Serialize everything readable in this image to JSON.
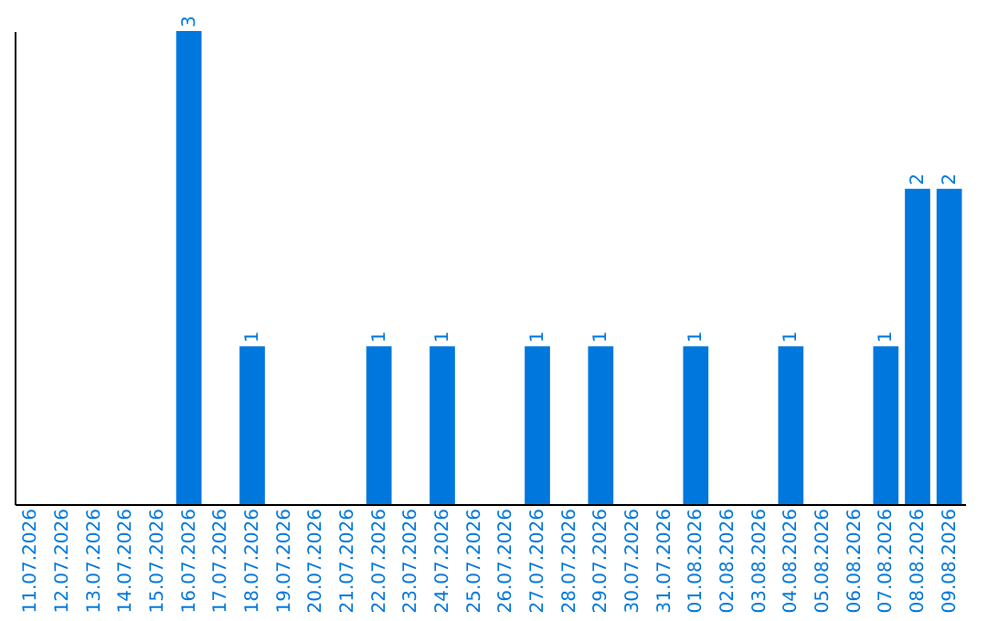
{
  "chart_data": {
    "type": "bar",
    "categories": [
      "11.07.2026",
      "12.07.2026",
      "13.07.2026",
      "14.07.2026",
      "15.07.2026",
      "16.07.2026",
      "17.07.2026",
      "18.07.2026",
      "19.07.2026",
      "20.07.2026",
      "21.07.2026",
      "22.07.2026",
      "23.07.2026",
      "24.07.2026",
      "25.07.2026",
      "26.07.2026",
      "27.07.2026",
      "28.07.2026",
      "29.07.2026",
      "30.07.2026",
      "31.07.2026",
      "01.08.2026",
      "02.08.2026",
      "03.08.2026",
      "04.08.2026",
      "05.08.2026",
      "06.08.2026",
      "07.08.2026",
      "08.08.2026",
      "09.08.2026"
    ],
    "values": [
      0,
      0,
      0,
      0,
      0,
      3,
      0,
      1,
      0,
      0,
      0,
      1,
      0,
      1,
      0,
      0,
      1,
      0,
      1,
      0,
      0,
      1,
      0,
      0,
      1,
      0,
      0,
      1,
      2,
      2
    ],
    "value_labels": [
      null,
      null,
      null,
      null,
      null,
      "3",
      null,
      "1",
      null,
      null,
      null,
      "1",
      null,
      "1",
      null,
      null,
      "1",
      null,
      "1",
      null,
      null,
      "1",
      null,
      null,
      "1",
      null,
      null,
      "1",
      "2",
      "2"
    ],
    "color": "#0077dd",
    "tick_labels": "x",
    "grid": false
  }
}
